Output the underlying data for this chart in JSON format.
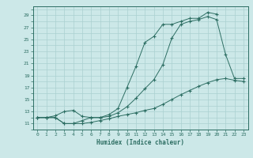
{
  "line1_x": [
    0,
    1,
    2,
    3,
    4,
    5,
    6,
    7,
    8,
    9,
    10,
    11,
    12,
    13,
    14,
    15,
    16,
    17,
    18,
    19,
    20
  ],
  "line1_y": [
    12,
    12,
    12,
    11,
    11,
    11.5,
    12,
    12,
    12.5,
    13.5,
    17,
    20.5,
    24.5,
    25.5,
    27.5,
    27.5,
    28,
    28.5,
    28.5,
    29.5,
    29.2
  ],
  "line2_x": [
    0,
    1,
    2,
    3,
    4,
    5,
    6,
    7,
    8,
    9,
    10,
    11,
    12,
    13,
    14,
    15,
    16,
    17,
    18,
    19,
    20,
    21,
    22,
    23
  ],
  "line2_y": [
    12,
    12,
    12.3,
    13,
    13.2,
    12.2,
    12,
    12,
    12.2,
    12.8,
    13.8,
    15.2,
    16.8,
    18.3,
    20.8,
    25.2,
    27.5,
    28,
    28.3,
    28.8,
    28.3,
    22.5,
    18.5,
    18.5
  ],
  "line3_x": [
    0,
    1,
    2,
    3,
    4,
    5,
    6,
    7,
    8,
    9,
    10,
    11,
    12,
    13,
    14,
    15,
    16,
    17,
    18,
    19,
    20,
    21,
    22,
    23
  ],
  "line3_y": [
    12,
    12,
    12,
    11,
    11,
    11,
    11.2,
    11.5,
    11.8,
    12.2,
    12.5,
    12.8,
    13.2,
    13.5,
    14.2,
    15,
    15.8,
    16.5,
    17.2,
    17.8,
    18.3,
    18.5,
    18.2,
    18
  ],
  "line_color": "#2d6e63",
  "bg_color": "#cce8e8",
  "grid_color": "#aad0d0",
  "xlabel": "Humidex (Indice chaleur)",
  "xlim": [
    -0.5,
    23.5
  ],
  "ylim": [
    10,
    30.5
  ],
  "yticks": [
    11,
    13,
    15,
    17,
    19,
    21,
    23,
    25,
    27,
    29
  ],
  "xticks": [
    0,
    1,
    2,
    3,
    4,
    5,
    6,
    7,
    8,
    9,
    10,
    11,
    12,
    13,
    14,
    15,
    16,
    17,
    18,
    19,
    20,
    21,
    22,
    23
  ]
}
